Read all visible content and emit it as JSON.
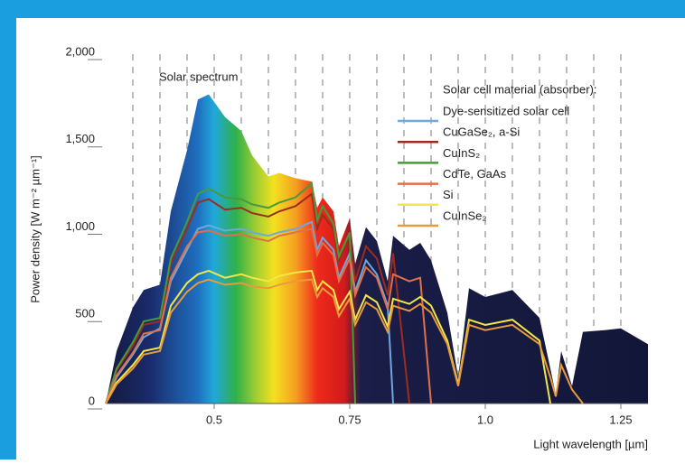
{
  "chart_data": {
    "type": "line",
    "y_label": "Power density [W m⁻² µm⁻¹]",
    "x_label": "Light wavelength [µm]",
    "annotation": "Solar spectrum",
    "legend_title": "Solar cell material (absorber):",
    "xlim": [
      0.3,
      1.3
    ],
    "ylim": [
      0,
      2000
    ],
    "xticks": [
      0.5,
      0.75,
      {
        "value": 1,
        "label": "1.0"
      },
      1.25
    ],
    "yticks": [
      {
        "value": 0,
        "label": "0"
      },
      500,
      {
        "value": 1000,
        "label": "1,000"
      },
      {
        "value": 1500,
        "label": "1,500"
      },
      {
        "value": 2000,
        "label": "2,000"
      }
    ],
    "grid": true,
    "x": [
      0.3,
      0.32,
      0.35,
      0.37,
      0.4,
      0.42,
      0.45,
      0.47,
      0.49,
      0.52,
      0.55,
      0.57,
      0.6,
      0.62,
      0.65,
      0.68,
      0.69,
      0.7,
      0.72,
      0.73,
      0.75,
      0.76,
      0.78,
      0.8,
      0.82,
      0.83,
      0.86,
      0.88,
      0.9,
      0.93,
      0.95,
      0.97,
      1.0,
      1.05,
      1.1,
      1.12,
      1.13,
      1.14,
      1.16,
      1.18,
      1.22,
      1.25,
      1.3
    ],
    "spectrum": [
      0,
      300,
      550,
      650,
      680,
      1100,
      1450,
      1740,
      1770,
      1640,
      1560,
      1420,
      1300,
      1320,
      1290,
      1270,
      1120,
      1180,
      1100,
      900,
      1060,
      800,
      1010,
      930,
      700,
      960,
      880,
      920,
      820,
      520,
      150,
      660,
      610,
      650,
      490,
      200,
      50,
      300,
      100,
      410,
      420,
      430,
      340
    ],
    "series": [
      {
        "name": "Dye-sensitized solar cell",
        "color": "#6fa8dc",
        "values": [
          0,
          150,
          280,
          380,
          430,
          700,
          880,
          1000,
          1020,
          990,
          1000,
          980,
          960,
          980,
          1000,
          1040,
          880,
          950,
          880,
          720,
          860,
          640,
          820,
          740,
          560,
          0,
          null,
          null,
          null,
          null,
          null,
          null,
          null,
          null,
          null,
          null,
          null,
          null,
          null,
          null,
          null,
          null,
          null
        ]
      },
      {
        "name": "CuGaSe₂, a-Si",
        "color": "#9b2d20",
        "values": [
          0,
          190,
          330,
          450,
          470,
          800,
          1000,
          1150,
          1170,
          1110,
          1120,
          1090,
          1070,
          1100,
          1130,
          1200,
          1000,
          1080,
          1000,
          820,
          960,
          700,
          900,
          830,
          620,
          860,
          0,
          null,
          null,
          null,
          null,
          null,
          null,
          null,
          null,
          null,
          null,
          null,
          null,
          null,
          null,
          null,
          null
        ]
      },
      {
        "name": "CuInS₂",
        "color": "#4a9a3a",
        "values": [
          0,
          200,
          350,
          470,
          490,
          830,
          1040,
          1200,
          1230,
          1180,
          1170,
          1140,
          1120,
          1150,
          1180,
          1260,
          1050,
          1130,
          1030,
          840,
          980,
          0,
          null,
          null,
          null,
          null,
          null,
          null,
          null,
          null,
          null,
          null,
          null,
          null,
          null,
          null,
          null,
          null,
          null,
          null,
          null,
          null,
          null
        ]
      },
      {
        "name": "CdTe, GaAs",
        "color": "#e0704a",
        "values": [
          0,
          160,
          290,
          400,
          420,
          720,
          900,
          980,
          990,
          960,
          970,
          950,
          930,
          960,
          980,
          1000,
          850,
          920,
          850,
          700,
          830,
          620,
          780,
          720,
          540,
          740,
          700,
          720,
          0,
          null,
          null,
          null,
          null,
          null,
          null,
          null,
          null,
          null,
          null,
          null,
          null,
          null,
          null
        ]
      },
      {
        "name": "Si",
        "color": "#f2e64a",
        "values": [
          0,
          120,
          220,
          300,
          320,
          560,
          690,
          740,
          760,
          720,
          740,
          720,
          700,
          730,
          750,
          760,
          650,
          700,
          650,
          540,
          640,
          480,
          620,
          580,
          440,
          600,
          570,
          610,
          560,
          360,
          110,
          480,
          450,
          480,
          360,
          0,
          null,
          null,
          null,
          null,
          null,
          null,
          null
        ]
      },
      {
        "name": "CuInSe₂",
        "color": "#e89a3c",
        "values": [
          0,
          110,
          200,
          280,
          300,
          520,
          640,
          690,
          710,
          680,
          690,
          670,
          660,
          680,
          700,
          710,
          610,
          660,
          610,
          500,
          600,
          450,
          580,
          540,
          410,
          560,
          530,
          570,
          520,
          340,
          100,
          450,
          420,
          450,
          340,
          150,
          40,
          220,
          80,
          0,
          null,
          null,
          null
        ]
      }
    ]
  }
}
